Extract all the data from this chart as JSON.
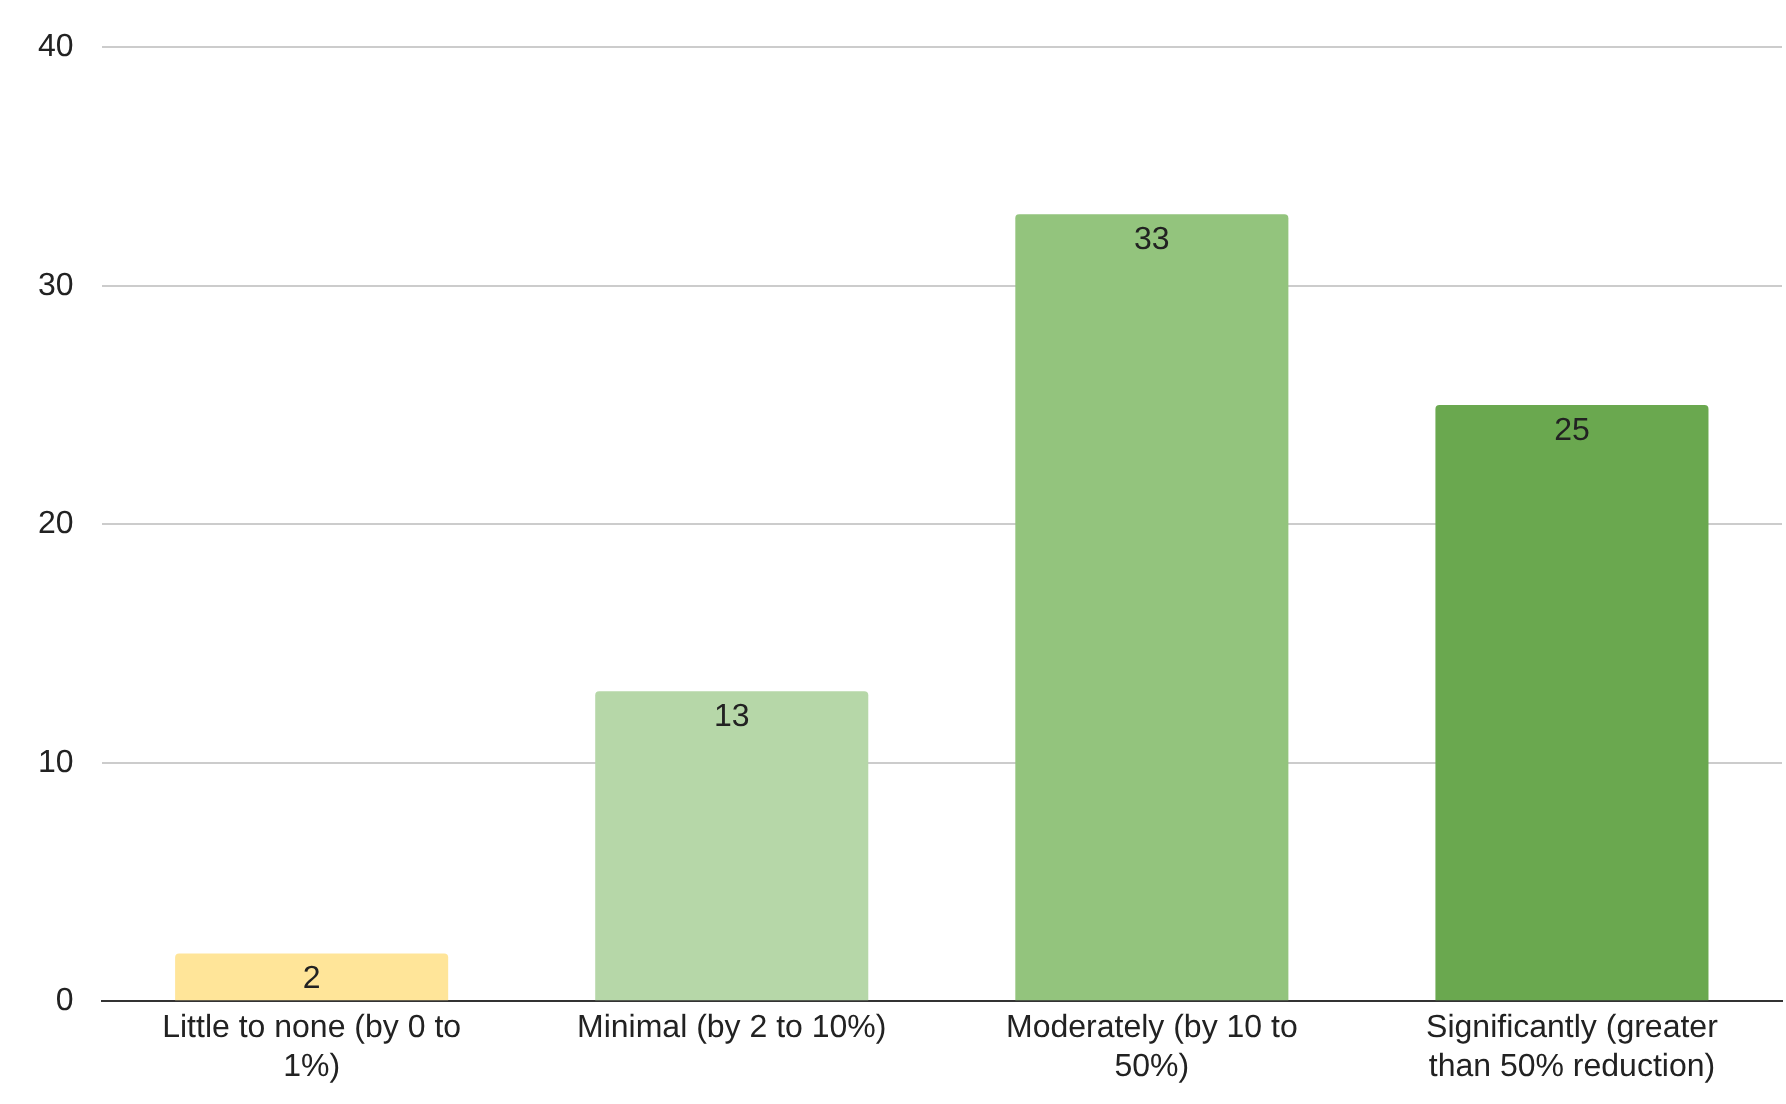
{
  "chart_data": {
    "type": "bar",
    "categories": [
      "Little to none (by 0 to 1%)",
      "Minimal (by 2 to 10%)",
      "Moderately (by 10 to 50%)",
      "Significantly (greater than 50% reduction)"
    ],
    "values": [
      2,
      13,
      33,
      25
    ],
    "colors": [
      "#ffe599",
      "#b6d7a8",
      "#93c47d",
      "#6aa84f"
    ],
    "ylim": [
      0,
      40
    ],
    "yticks": [
      0,
      10,
      20,
      30,
      40
    ],
    "grid": "y",
    "legend": false,
    "data_labels": true
  }
}
